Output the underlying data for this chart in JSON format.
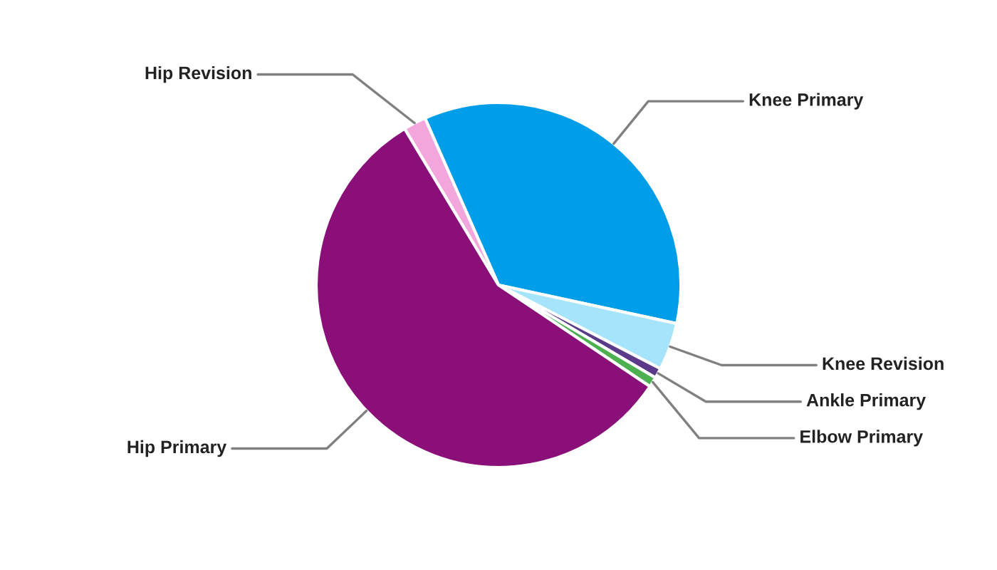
{
  "chart_data": {
    "type": "pie",
    "categories": [
      "Knee Primary",
      "Knee Revision",
      "Ankle Primary",
      "Elbow Primary",
      "Hip Primary",
      "Hip Revision"
    ],
    "values": [
      35,
      4.2,
      0.9,
      0.9,
      57,
      2
    ],
    "colors": [
      "#009de8",
      "#a6e4fb",
      "#5b3a8a",
      "#4caf50",
      "#8a0f78",
      "#f3a6dc"
    ],
    "legend": false
  }
}
